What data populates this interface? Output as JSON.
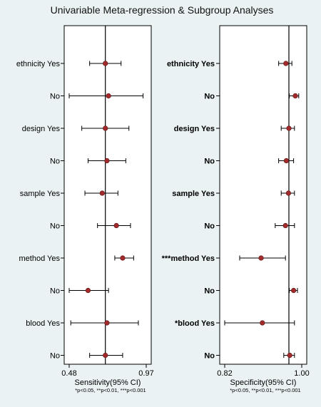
{
  "chart_data": [
    {
      "type": "forest",
      "title": "Univariable Meta-regression & Subgroup Analyses",
      "xlabel": "Sensitivity(95% CI)",
      "footnote": "*p<0.05, **p<0.01, ***p<0.001",
      "xlim": [
        0.48,
        0.97
      ],
      "xticks": [
        "0.48",
        "0.97"
      ],
      "reference_line": 0.71,
      "categories": [
        "ethnicity Yes",
        "No",
        "design Yes",
        "No",
        "sample Yes",
        "No",
        "method Yes",
        "No",
        "blood Yes",
        "No"
      ],
      "estimates": [
        0.71,
        0.73,
        0.71,
        0.72,
        0.69,
        0.78,
        0.82,
        0.6,
        0.72,
        0.71
      ],
      "ci_lower": [
        0.61,
        0.48,
        0.56,
        0.6,
        0.58,
        0.66,
        0.77,
        0.48,
        0.49,
        0.61
      ],
      "ci_upper": [
        0.81,
        0.95,
        0.86,
        0.84,
        0.79,
        0.87,
        0.89,
        0.73,
        0.92,
        0.82
      ]
    },
    {
      "type": "forest",
      "title": "",
      "xlabel": "Specificity(95% CI)",
      "footnote": "*p<0.05, **p<0.01, ***p<0.001",
      "xlim": [
        0.82,
        1.0
      ],
      "xticks": [
        "0.82",
        "1.00"
      ],
      "reference_line": 0.97,
      "categories": [
        "ethnicity Yes",
        "No",
        "design Yes",
        "No",
        "sample Yes",
        "No",
        "***method Yes",
        "No",
        "*blood Yes",
        "No"
      ],
      "estimates": [
        0.963,
        0.985,
        0.97,
        0.964,
        0.969,
        0.962,
        0.905,
        0.981,
        0.908,
        0.972
      ],
      "ci_lower": [
        0.946,
        0.971,
        0.952,
        0.946,
        0.952,
        0.938,
        0.855,
        0.971,
        0.82,
        0.958
      ],
      "ci_upper": [
        0.977,
        0.993,
        0.983,
        0.981,
        0.983,
        0.983,
        0.962,
        0.99,
        0.983,
        0.983
      ]
    }
  ]
}
